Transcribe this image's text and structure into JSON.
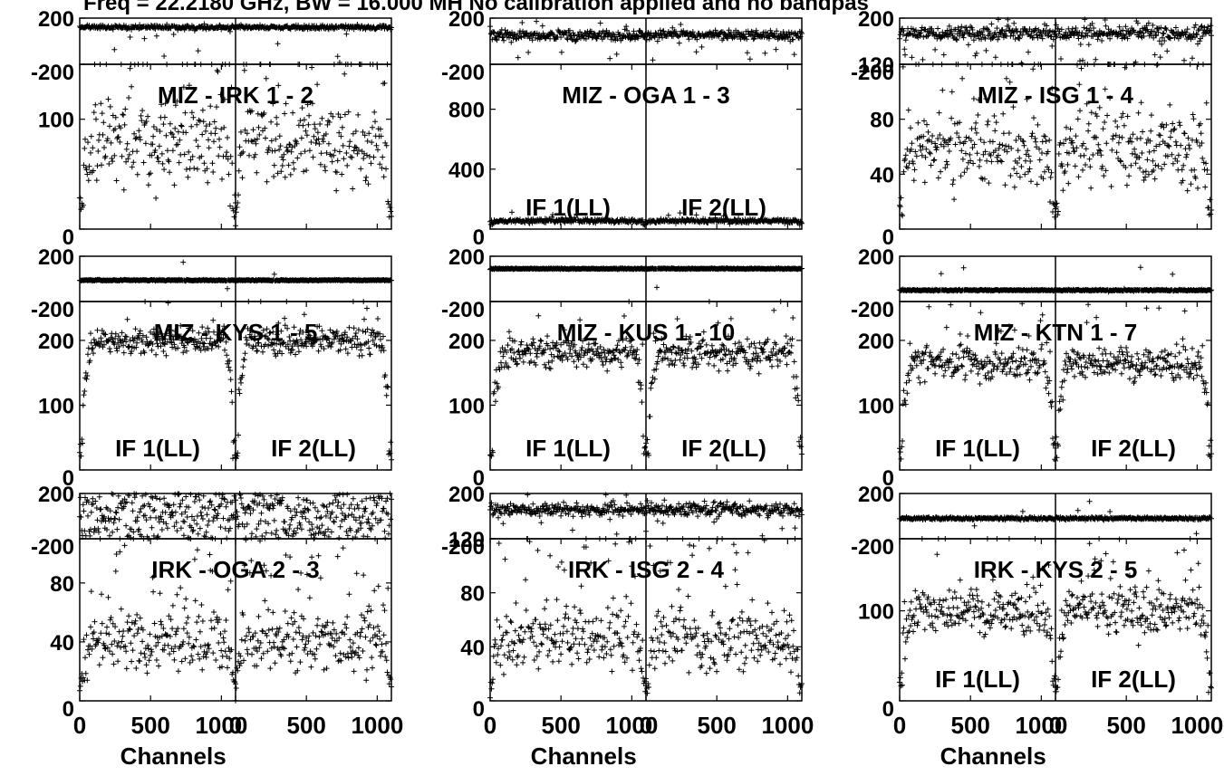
{
  "title": "Freq = 22.2180 GHz, BW = 16.000 MH   No calibration applied and no bandpas",
  "xlabel": "Channels",
  "phase_ticks": [
    "200",
    "-200"
  ],
  "x_ticks": [
    "0",
    "500",
    "1000",
    "0",
    "500",
    "1000"
  ],
  "chart_data": [
    {
      "type": "scatter",
      "baseline": "MIZ - IRK   1 - 2",
      "ylim": [
        0,
        150
      ],
      "yticks": [
        0,
        100
      ],
      "if_labels": [],
      "x": {
        "range": [
          0,
          1100
        ],
        "ticks": [
          0,
          500,
          1000
        ],
        "panels": 2
      },
      "phase": {
        "ylim": [
          -200,
          200
        ],
        "ticks": [
          200,
          -200
        ],
        "center": 120,
        "spread": 18,
        "outlier_rate": 0.03
      },
      "amplitude": {
        "peak": 80,
        "edge": 25,
        "scatter": 32,
        "outlier_rate": 0.12,
        "notch": 10
      }
    },
    {
      "type": "scatter",
      "baseline": "MIZ - OGA   1 - 3",
      "ylim": [
        0,
        1100
      ],
      "yticks": [
        0,
        400,
        800
      ],
      "if_labels": [
        "IF 1(LL)",
        "IF 2(LL)"
      ],
      "x": {
        "range": [
          0,
          1100
        ],
        "ticks": [
          0,
          500,
          1000
        ],
        "panels": 2
      },
      "phase": {
        "ylim": [
          -200,
          200
        ],
        "ticks": [
          200,
          -200
        ],
        "center": 55,
        "spread": 45,
        "outlier_rate": 0.06
      },
      "amplitude": {
        "peak": 55,
        "edge": 45,
        "scatter": 12,
        "outlier_rate": 0.03,
        "notch": 25
      }
    },
    {
      "type": "scatter",
      "baseline": "MIZ - ISG   1 - 4",
      "ylim": [
        0,
        120
      ],
      "yticks": [
        0,
        40,
        80,
        120
      ],
      "if_labels": [],
      "x": {
        "range": [
          0,
          1100
        ],
        "ticks": [
          0,
          500,
          1000
        ],
        "panels": 2
      },
      "phase": {
        "ylim": [
          -200,
          200
        ],
        "ticks": [
          200,
          -200
        ],
        "center": 70,
        "spread": 60,
        "outlier_rate": 0.1
      },
      "amplitude": {
        "peak": 60,
        "edge": 15,
        "scatter": 26,
        "outlier_rate": 0.14,
        "notch": 8
      }
    },
    {
      "type": "scatter",
      "baseline": "MIZ - KYS   1 - 5",
      "ylim": [
        0,
        260
      ],
      "yticks": [
        0,
        100,
        200
      ],
      "if_labels": [
        "IF 1(LL)",
        "IF 2(LL)"
      ],
      "x": {
        "range": [
          0,
          1100
        ],
        "ticks": [
          0,
          500,
          1000
        ],
        "panels": 2
      },
      "phase": {
        "ylim": [
          -200,
          200
        ],
        "ticks": [
          200,
          -200
        ],
        "center": -12,
        "spread": 5,
        "outlier_rate": 0.004
      },
      "amplitude": {
        "peak": 200,
        "edge": 40,
        "scatter": 20,
        "outlier_rate": 0.06,
        "notch": 15
      }
    },
    {
      "type": "scatter",
      "baseline": "MIZ - KUS   1 - 10",
      "ylim": [
        0,
        260
      ],
      "yticks": [
        0,
        100,
        200
      ],
      "if_labels": [
        "IF 1(LL)",
        "IF 2(LL)"
      ],
      "x": {
        "range": [
          0,
          1100
        ],
        "ticks": [
          0,
          500,
          1000
        ],
        "panels": 2
      },
      "phase": {
        "ylim": [
          -200,
          200
        ],
        "ticks": [
          200,
          -200
        ],
        "center": 90,
        "spread": 5,
        "outlier_rate": 0.004
      },
      "amplitude": {
        "peak": 180,
        "edge": 40,
        "scatter": 22,
        "outlier_rate": 0.06,
        "notch": 15
      }
    },
    {
      "type": "scatter",
      "baseline": "MIZ - KTN   1 - 7",
      "ylim": [
        0,
        260
      ],
      "yticks": [
        0,
        100,
        200
      ],
      "if_labels": [
        "IF 1(LL)",
        "IF 2(LL)"
      ],
      "x": {
        "range": [
          0,
          1100
        ],
        "ticks": [
          0,
          500,
          1000
        ],
        "panels": 2
      },
      "phase": {
        "ylim": [
          -200,
          200
        ],
        "ticks": [
          200,
          -200
        ],
        "center": -100,
        "spread": 6,
        "outlier_rate": 0.012
      },
      "amplitude": {
        "peak": 165,
        "edge": 40,
        "scatter": 22,
        "outlier_rate": 0.07,
        "notch": 12
      }
    },
    {
      "type": "scatter",
      "baseline": "IRK - OGA   2 - 3",
      "ylim": [
        0,
        110
      ],
      "yticks": [
        0,
        40,
        80
      ],
      "if_labels": [],
      "x": {
        "range": [
          0,
          1100
        ],
        "ticks": [
          0,
          500,
          1000
        ],
        "panels": 2
      },
      "phase": {
        "ylim": [
          -200,
          200
        ],
        "ticks": [
          200,
          -200
        ],
        "center": 0,
        "spread": 220,
        "outlier_rate": 0
      },
      "amplitude": {
        "peak": 40,
        "edge": 20,
        "scatter": 18,
        "outlier_rate": 0.14,
        "notch": 8
      }
    },
    {
      "type": "scatter",
      "baseline": "IRK - ISG   2 - 4",
      "ylim": [
        0,
        120
      ],
      "yticks": [
        0,
        40,
        80,
        120
      ],
      "if_labels": [],
      "x": {
        "range": [
          0,
          1100
        ],
        "ticks": [
          0,
          500,
          1000
        ],
        "panels": 2
      },
      "phase": {
        "ylim": [
          -200,
          200
        ],
        "ticks": [
          200,
          -200
        ],
        "center": 60,
        "spread": 55,
        "outlier_rate": 0.08
      },
      "amplitude": {
        "peak": 45,
        "edge": 15,
        "scatter": 20,
        "outlier_rate": 0.14,
        "notch": 6
      }
    },
    {
      "type": "scatter",
      "baseline": "IRK - KYS   2 - 5",
      "ylim": [
        0,
        180
      ],
      "yticks": [
        0,
        100
      ],
      "if_labels": [
        "IF 1(LL)",
        "IF 2(LL)"
      ],
      "x": {
        "range": [
          0,
          1100
        ],
        "ticks": [
          0,
          500,
          1000
        ],
        "panels": 2
      },
      "phase": {
        "ylim": [
          -200,
          200
        ],
        "ticks": [
          200,
          -200
        ],
        "center": -20,
        "spread": 12,
        "outlier_rate": 0.01
      },
      "amplitude": {
        "peak": 100,
        "edge": 25,
        "scatter": 22,
        "outlier_rate": 0.1,
        "notch": 8
      }
    }
  ]
}
